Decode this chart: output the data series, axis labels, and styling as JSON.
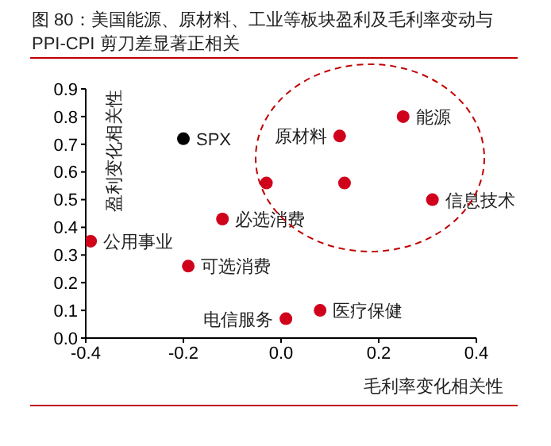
{
  "chart_data": {
    "type": "scatter",
    "title": "图 80：美国能源、原材料、工业等板块盈利及毛利率变动与PPI-CPI 剪刀差显著正相关",
    "xlabel": "毛利率变化相关性",
    "ylabel": "盈利变化相关性",
    "xlim": [
      -0.4,
      0.4
    ],
    "ylim": [
      0,
      0.9
    ],
    "xticks": [
      -0.4,
      -0.2,
      {
        "value": 0,
        "label": "0.0"
      },
      0.2,
      0.4
    ],
    "yticks": [
      {
        "value": 0,
        "label": "0.0"
      },
      0.1,
      0.2,
      0.3,
      0.4,
      0.5,
      0.6,
      0.7,
      0.8,
      0.9
    ],
    "marker": "circle",
    "series": [
      {
        "name": "SPX",
        "color": "#000000",
        "x": [
          -0.2
        ],
        "values": [
          0.72
        ]
      },
      {
        "name": "原材料",
        "color": "#d0021b",
        "x": [
          0.12
        ],
        "values": [
          0.73
        ]
      },
      {
        "name": "能源",
        "color": "#d0021b",
        "x": [
          0.25
        ],
        "values": [
          0.8
        ]
      },
      {
        "name": "信息技术",
        "color": "#d0021b",
        "x": [
          0.31
        ],
        "values": [
          0.5
        ]
      },
      {
        "color": "#d0021b",
        "x": [
          0.13
        ],
        "values": [
          0.56
        ]
      },
      {
        "color": "#d0021b",
        "x": [
          -0.03
        ],
        "values": [
          0.56
        ]
      },
      {
        "name": "必选消费",
        "color": "#d0021b",
        "x": [
          -0.12
        ],
        "values": [
          0.43
        ]
      },
      {
        "name": "公用事业",
        "color": "#d0021b",
        "x": [
          -0.39
        ],
        "values": [
          0.35
        ]
      },
      {
        "name": "可选消费",
        "color": "#d0021b",
        "x": [
          -0.19
        ],
        "values": [
          0.26
        ]
      },
      {
        "name": "医疗保健",
        "color": "#d0021b",
        "x": [
          0.08
        ],
        "values": [
          0.1
        ]
      },
      {
        "name": "电信服务",
        "color": "#d0021b",
        "x": [
          0.01
        ],
        "values": [
          0.07
        ]
      }
    ]
  }
}
